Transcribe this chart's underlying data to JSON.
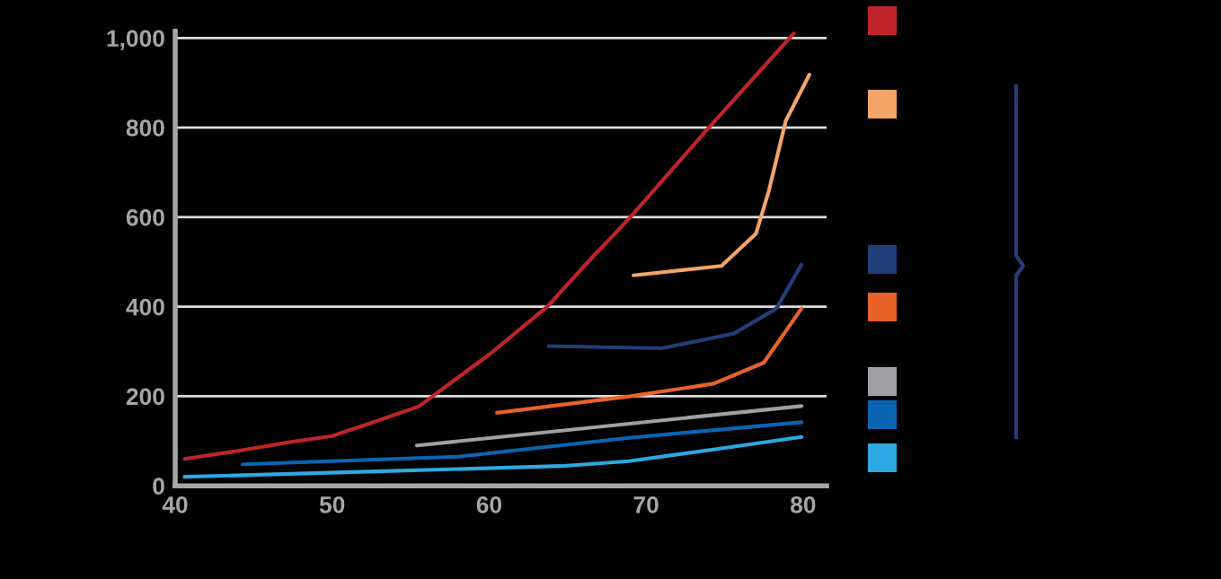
{
  "chart_data": {
    "type": "line",
    "xlim": [
      40,
      81.5
    ],
    "ylim": [
      0,
      1015
    ],
    "xticks": [
      40,
      50,
      60,
      70,
      80
    ],
    "yticks": [
      0,
      200,
      400,
      600,
      800,
      {
        "value": 1000,
        "label": "1,000"
      }
    ],
    "grid": "y",
    "line_style": "solid",
    "marker": "none",
    "series": [
      {
        "color": "#c0242b",
        "x": [
          40.6,
          44.2,
          47.2,
          50,
          52.8,
          55.5,
          56.4,
          60,
          63.7,
          66.3,
          69,
          74,
          79.4
        ],
        "values": [
          60,
          79,
          97,
          111,
          144,
          177,
          200,
          293,
          400,
          500,
          600,
          800,
          1010
        ]
      },
      {
        "color": "#f4a56a",
        "x": [
          69.2,
          74.8,
          77,
          77.8,
          78.9,
          80.4
        ],
        "values": [
          470,
          491,
          563,
          656,
          815,
          918
        ]
      },
      {
        "color": "#223f7a",
        "x": [
          63.8,
          71,
          75.6,
          78.3,
          79.9
        ],
        "values": [
          312,
          307,
          340,
          396,
          494
        ]
      },
      {
        "color": "#e8622a",
        "x": [
          60.5,
          69,
          74.3,
          77.5,
          79.9
        ],
        "values": [
          163,
          200,
          228,
          275,
          396
        ]
      },
      {
        "color": "#a0a0a4",
        "x": [
          55.4,
          79.9
        ],
        "values": [
          90,
          178
        ]
      },
      {
        "color": "#0a64b4",
        "x": [
          44.3,
          58,
          68.9,
          79.9
        ],
        "values": [
          48,
          65,
          107,
          142
        ]
      },
      {
        "color": "#2ea8e0",
        "x": [
          40.6,
          52.8,
          64.6,
          68.9,
          74.3,
          79.9
        ],
        "values": [
          20,
          32,
          44,
          55,
          81,
          109
        ]
      }
    ]
  }
}
